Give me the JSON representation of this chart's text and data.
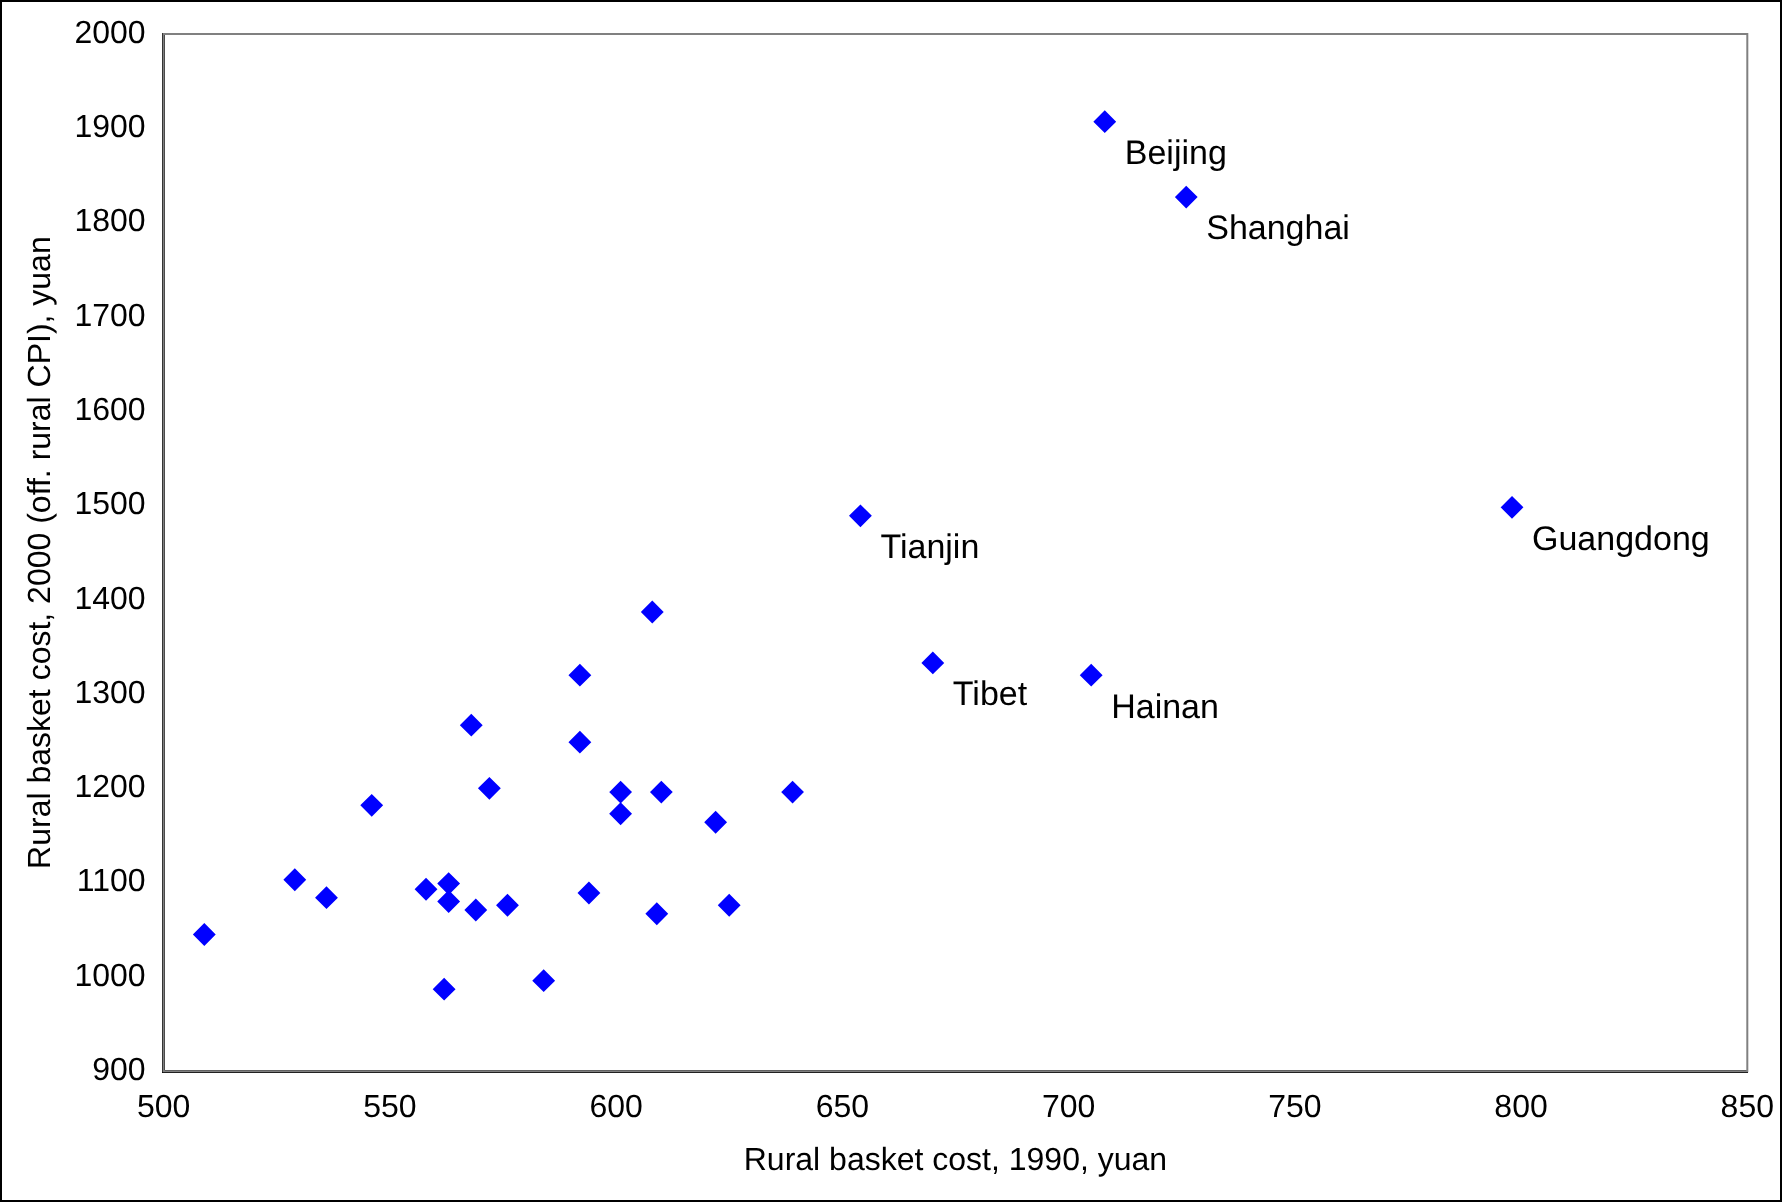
{
  "chart_data": {
    "type": "scatter",
    "xlabel": "Rural basket cost, 1990, yuan",
    "ylabel": "Rural basket cost, 2000 (off. rural CPI), yuan",
    "x": [
      509,
      529,
      536,
      546,
      558,
      563,
      563,
      562,
      568,
      569,
      572,
      576,
      584,
      592,
      592,
      594,
      601,
      601,
      608,
      610,
      609,
      622,
      625,
      639,
      654,
      670,
      705,
      708,
      726,
      798
    ],
    "values": [
      1045,
      1103,
      1084,
      1182,
      1093,
      1099,
      1080,
      987,
      1267,
      1071,
      1200,
      1076,
      996,
      1320,
      1249,
      1089,
      1196,
      1173,
      1387,
      1196,
      1067,
      1164,
      1076,
      1196,
      1489,
      1333,
      1320,
      1907,
      1827,
      1498
    ],
    "color": "#0000ff",
    "marker": "diamond",
    "xlim": [
      500,
      850
    ],
    "xticks": [
      500,
      550,
      600,
      650,
      700,
      750,
      800,
      850
    ],
    "ylim": [
      900,
      2000
    ],
    "yticks": [
      900,
      1000,
      1100,
      1200,
      1300,
      1400,
      1500,
      1600,
      1700,
      1800,
      1900,
      2000
    ],
    "grid": false,
    "legend": false,
    "annotations": [
      {
        "text": "Beijing",
        "x": 708,
        "y": 1907
      },
      {
        "text": "Shanghai",
        "x": 726,
        "y": 1827
      },
      {
        "text": "Tianjin",
        "x": 654,
        "y": 1489
      },
      {
        "text": "Guangdong",
        "x": 798,
        "y": 1498
      },
      {
        "text": "Tibet",
        "x": 670,
        "y": 1333
      },
      {
        "text": "Hainan",
        "x": 705,
        "y": 1320
      }
    ]
  }
}
